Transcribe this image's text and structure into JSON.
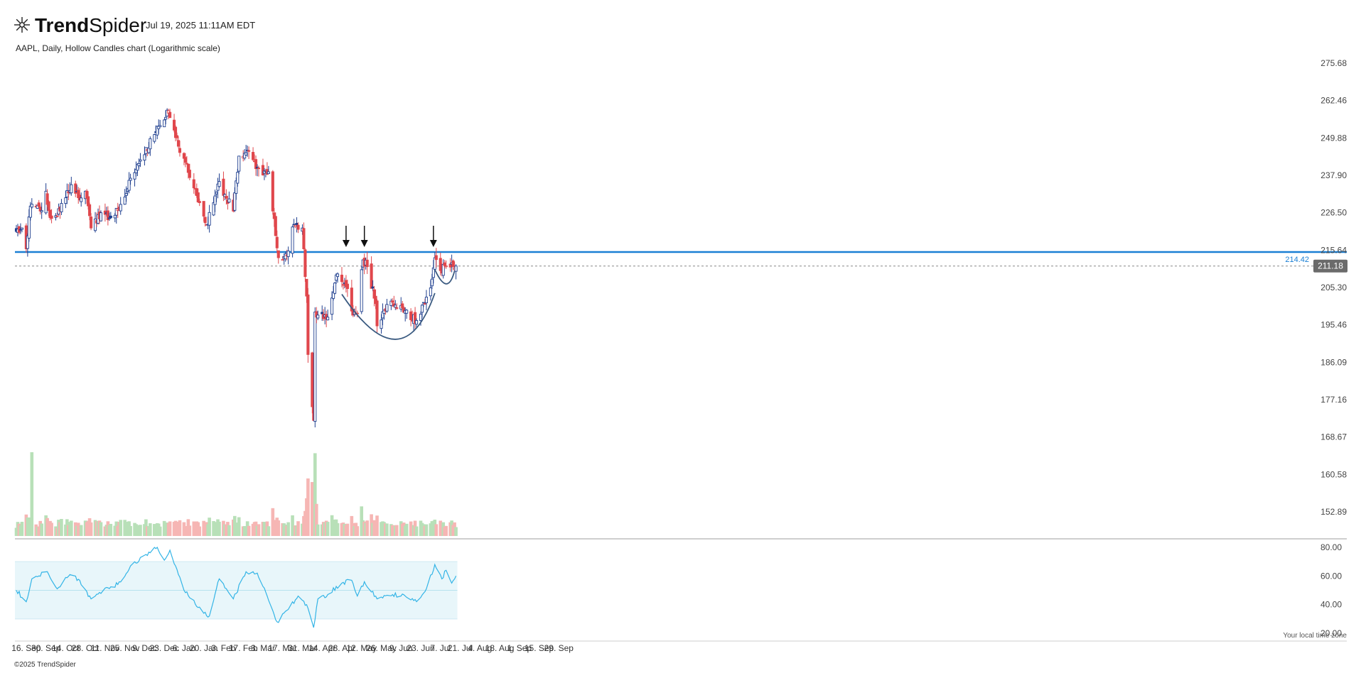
{
  "header": {
    "brand_light": "Trend",
    "brand_bold": "Spider",
    "timestamp": "Jul 19, 2025 11:11AM EDT",
    "subtitle": "AAPL, Daily, Hollow Candles chart (Logarithmic scale)"
  },
  "footer": {
    "copyright": "©2025 TrendSpider",
    "timezone_note": "Your local time zone"
  },
  "colors": {
    "up": "#1f3f8f",
    "down": "#e0474c",
    "vol_up": "#b8e0b8",
    "vol_down": "#f6b6b4",
    "level_line": "#1a7fd4",
    "rsi_line": "#33b4e6",
    "rsi_band": "#e8f6fa",
    "annotation": "#3a5a80"
  },
  "chart_data": [
    {
      "type": "candlestick",
      "title": "AAPL, Daily, Hollow Candles chart (Logarithmic scale)",
      "y_scale": "log",
      "y_ticks": [
        "275.68",
        "262.46",
        "249.88",
        "237.90",
        "226.50",
        "215.64",
        "205.30",
        "195.46",
        "186.09",
        "177.16",
        "168.67",
        "160.58",
        "152.89"
      ],
      "x_ticks": [
        "16. Sep",
        "30. Sep",
        "14. Oct",
        "28. Oct",
        "11. Nov",
        "25. Nov",
        "9. Dec",
        "23. Dec",
        "6. Jan",
        "20. Jan",
        "3. Feb",
        "17. Feb",
        "3. Mar",
        "17. Mar",
        "31. Mar",
        "14. Apr",
        "28. Apr",
        "12. May",
        "26. May",
        "9. Jun",
        "23. Jun",
        "7. Jul",
        "21. Jul",
        "4. Aug",
        "18. Aug",
        "1. Sep",
        "15. Sep",
        "29. Sep"
      ],
      "x_start": "2024-09-09",
      "close_anchors": [
        {
          "date": "2024-09-09",
          "close": 221
        },
        {
          "date": "2024-09-13",
          "close": 222
        },
        {
          "date": "2024-09-16",
          "close": 216
        },
        {
          "date": "2024-09-19",
          "close": 228.5
        },
        {
          "date": "2024-09-26",
          "close": 227
        },
        {
          "date": "2024-09-30",
          "close": 233
        },
        {
          "date": "2024-10-03",
          "close": 225
        },
        {
          "date": "2024-10-08",
          "close": 225.5
        },
        {
          "date": "2024-10-14",
          "close": 231
        },
        {
          "date": "2024-10-18",
          "close": 235
        },
        {
          "date": "2024-10-23",
          "close": 231
        },
        {
          "date": "2024-10-28",
          "close": 233
        },
        {
          "date": "2024-11-01",
          "close": 222
        },
        {
          "date": "2024-11-08",
          "close": 226.5
        },
        {
          "date": "2024-11-15",
          "close": 225
        },
        {
          "date": "2024-11-22",
          "close": 229
        },
        {
          "date": "2024-11-29",
          "close": 237
        },
        {
          "date": "2024-12-06",
          "close": 242.8
        },
        {
          "date": "2024-12-16",
          "close": 251
        },
        {
          "date": "2024-12-20",
          "close": 254
        },
        {
          "date": "2024-12-26",
          "close": 259
        },
        {
          "date": "2024-12-31",
          "close": 250
        },
        {
          "date": "2025-01-07",
          "close": 242
        },
        {
          "date": "2025-01-13",
          "close": 234
        },
        {
          "date": "2025-01-17",
          "close": 229.5
        },
        {
          "date": "2025-01-22",
          "close": 223
        },
        {
          "date": "2025-01-27",
          "close": 229.5
        },
        {
          "date": "2025-01-31",
          "close": 236
        },
        {
          "date": "2025-02-04",
          "close": 232
        },
        {
          "date": "2025-02-10",
          "close": 227
        },
        {
          "date": "2025-02-14",
          "close": 244
        },
        {
          "date": "2025-02-21",
          "close": 245.5
        },
        {
          "date": "2025-02-26",
          "close": 240
        },
        {
          "date": "2025-03-03",
          "close": 238
        },
        {
          "date": "2025-03-07",
          "close": 239
        },
        {
          "date": "2025-03-10",
          "close": 227
        },
        {
          "date": "2025-03-14",
          "close": 213.5
        },
        {
          "date": "2025-03-20",
          "close": 214
        },
        {
          "date": "2025-03-25",
          "close": 223
        },
        {
          "date": "2025-03-31",
          "close": 222
        },
        {
          "date": "2025-04-03",
          "close": 203
        },
        {
          "date": "2025-04-04",
          "close": 188
        },
        {
          "date": "2025-04-08",
          "close": 172.4
        },
        {
          "date": "2025-04-09",
          "close": 198.8
        },
        {
          "date": "2025-04-11",
          "close": 198
        },
        {
          "date": "2025-04-17",
          "close": 196.9
        },
        {
          "date": "2025-04-25",
          "close": 209
        },
        {
          "date": "2025-05-02",
          "close": 205
        },
        {
          "date": "2025-05-06",
          "close": 198
        },
        {
          "date": "2025-05-09",
          "close": 198.5
        },
        {
          "date": "2025-05-13",
          "close": 212.9
        },
        {
          "date": "2025-05-16",
          "close": 211
        },
        {
          "date": "2025-05-22",
          "close": 201
        },
        {
          "date": "2025-05-23",
          "close": 195.2
        },
        {
          "date": "2025-05-30",
          "close": 200.8
        },
        {
          "date": "2025-06-05",
          "close": 200.6
        },
        {
          "date": "2025-06-12",
          "close": 199.2
        },
        {
          "date": "2025-06-20",
          "close": 196.6
        },
        {
          "date": "2025-06-26",
          "close": 201
        },
        {
          "date": "2025-06-30",
          "close": 205.2
        },
        {
          "date": "2025-07-03",
          "close": 213.5
        },
        {
          "date": "2025-07-07",
          "close": 209.9
        },
        {
          "date": "2025-07-11",
          "close": 211.2
        },
        {
          "date": "2025-07-18",
          "close": 211.18
        }
      ],
      "last_price": "211.18",
      "level_label": "214.42",
      "horizontal_level": 215.1,
      "dashed_level": 211.18,
      "annotations": {
        "arrows_at": [
          "2025-05-01",
          "2025-05-14",
          "2025-07-02"
        ],
        "base_arc": {
          "start_date": "2025-04-28",
          "start_value": 203.5,
          "bottom_date": "2025-06-05",
          "bottom_value": 191.8,
          "end_date": "2025-07-03",
          "end_value": 203.8
        },
        "handle_arc": {
          "start_date": "2025-07-03",
          "start_value": 210.2,
          "bottom_date": "2025-07-11",
          "bottom_value": 206.3,
          "end_date": "2025-07-17",
          "end_value": 209.8
        }
      },
      "grid": false
    },
    {
      "type": "bar",
      "title": "Volume",
      "note": "volume histogram along chart bottom; tall spike on 2024-09-20, elevated early April 2025"
    },
    {
      "type": "line",
      "title": "RSI",
      "y_ticks": [
        "80.00",
        "60.00",
        "40.00",
        "20.00"
      ],
      "band": [
        30,
        70
      ],
      "midline": 50,
      "rsi_anchors": [
        {
          "date": "2024-09-09",
          "rsi": 50
        },
        {
          "date": "2024-09-16",
          "rsi": 42
        },
        {
          "date": "2024-09-20",
          "rsi": 58
        },
        {
          "date": "2024-10-01",
          "rsi": 63
        },
        {
          "date": "2024-10-08",
          "rsi": 51
        },
        {
          "date": "2024-10-17",
          "rsi": 61
        },
        {
          "date": "2024-10-24",
          "rsi": 57
        },
        {
          "date": "2024-11-01",
          "rsi": 44
        },
        {
          "date": "2024-11-12",
          "rsi": 52
        },
        {
          "date": "2024-11-20",
          "rsi": 54
        },
        {
          "date": "2024-11-29",
          "rsi": 67
        },
        {
          "date": "2024-12-10",
          "rsi": 75
        },
        {
          "date": "2024-12-18",
          "rsi": 80
        },
        {
          "date": "2024-12-23",
          "rsi": 71
        },
        {
          "date": "2024-12-27",
          "rsi": 78
        },
        {
          "date": "2025-01-06",
          "rsi": 50
        },
        {
          "date": "2025-01-16",
          "rsi": 38
        },
        {
          "date": "2025-01-24",
          "rsi": 32
        },
        {
          "date": "2025-01-31",
          "rsi": 58
        },
        {
          "date": "2025-02-10",
          "rsi": 44
        },
        {
          "date": "2025-02-19",
          "rsi": 63
        },
        {
          "date": "2025-02-27",
          "rsi": 62
        },
        {
          "date": "2025-03-07",
          "rsi": 43
        },
        {
          "date": "2025-03-13",
          "rsi": 28
        },
        {
          "date": "2025-03-20",
          "rsi": 36
        },
        {
          "date": "2025-03-28",
          "rsi": 46
        },
        {
          "date": "2025-04-03",
          "rsi": 40
        },
        {
          "date": "2025-04-08",
          "rsi": 24
        },
        {
          "date": "2025-04-11",
          "rsi": 44
        },
        {
          "date": "2025-04-18",
          "rsi": 47
        },
        {
          "date": "2025-04-28",
          "rsi": 55
        },
        {
          "date": "2025-05-05",
          "rsi": 57
        },
        {
          "date": "2025-05-09",
          "rsi": 46
        },
        {
          "date": "2025-05-14",
          "rsi": 56
        },
        {
          "date": "2025-05-23",
          "rsi": 44
        },
        {
          "date": "2025-06-03",
          "rsi": 47
        },
        {
          "date": "2025-06-12",
          "rsi": 46
        },
        {
          "date": "2025-06-20",
          "rsi": 42
        },
        {
          "date": "2025-06-27",
          "rsi": 51
        },
        {
          "date": "2025-07-03",
          "rsi": 68
        },
        {
          "date": "2025-07-08",
          "rsi": 58
        },
        {
          "date": "2025-07-11",
          "rsi": 64
        },
        {
          "date": "2025-07-15",
          "rsi": 55
        },
        {
          "date": "2025-07-18",
          "rsi": 60
        }
      ]
    }
  ]
}
